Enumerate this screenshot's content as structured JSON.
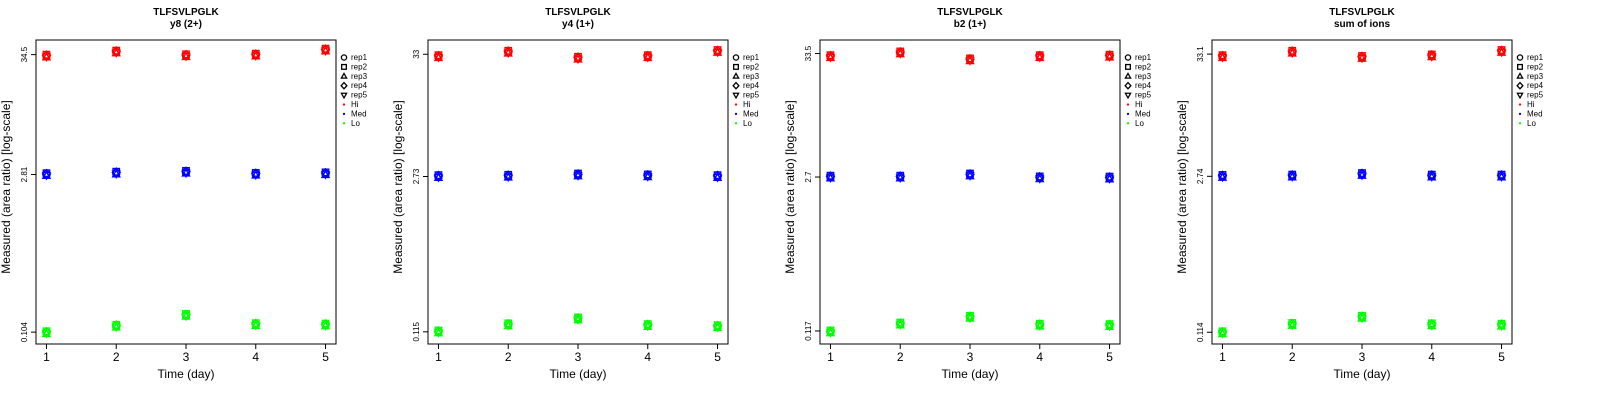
{
  "chart_data": [
    {
      "type": "scatter",
      "title": "TLFSVLPGLK",
      "subtitle": "y8 (2+)",
      "xlabel": "Time (day)",
      "ylabel": "Measured (area ratio) [log-scale]",
      "log_y": true,
      "yticks": [
        "0.104",
        "2.81",
        "34.5"
      ],
      "ylim": [
        0.1,
        38
      ],
      "x": [
        1,
        2,
        3,
        4,
        5
      ],
      "series": [
        {
          "name": "Hi",
          "color": "#ff0000",
          "values": [
            33.5,
            36.5,
            33.8,
            34.2,
            38.0
          ]
        },
        {
          "name": "Med",
          "color": "#0000ff",
          "values": [
            2.81,
            2.9,
            2.95,
            2.83,
            2.86
          ]
        },
        {
          "name": "Lo",
          "color": "#00ff00",
          "values": [
            0.103,
            0.118,
            0.148,
            0.122,
            0.121
          ]
        }
      ]
    },
    {
      "type": "scatter",
      "title": "TLFSVLPGLK",
      "subtitle": "y4 (1+)",
      "xlabel": "Time (day)",
      "ylabel": "Measured (area ratio) [log-scale]",
      "log_y": true,
      "yticks": [
        "0.115",
        "2.73",
        "33"
      ],
      "ylim": [
        0.11,
        36
      ],
      "x": [
        1,
        2,
        3,
        4,
        5
      ],
      "series": [
        {
          "name": "Hi",
          "color": "#ff0000",
          "values": [
            31.5,
            34.5,
            30.5,
            31.5,
            35.0
          ]
        },
        {
          "name": "Med",
          "color": "#0000ff",
          "values": [
            2.73,
            2.75,
            2.82,
            2.77,
            2.73
          ]
        },
        {
          "name": "Lo",
          "color": "#00ff00",
          "values": [
            0.115,
            0.133,
            0.15,
            0.131,
            0.128
          ]
        }
      ]
    },
    {
      "type": "scatter",
      "title": "TLFSVLPGLK",
      "subtitle": "b2 (1+)",
      "xlabel": "Time (day)",
      "ylabel": "Measured (area ratio) [log-scale]",
      "log_y": true,
      "yticks": [
        "0.117",
        "2.7",
        "33.5"
      ],
      "ylim": [
        0.11,
        36
      ],
      "x": [
        1,
        2,
        3,
        4,
        5
      ],
      "series": [
        {
          "name": "Hi",
          "color": "#ff0000",
          "values": [
            31.5,
            34.0,
            29.5,
            31.5,
            31.8
          ]
        },
        {
          "name": "Med",
          "color": "#0000ff",
          "values": [
            2.7,
            2.7,
            2.82,
            2.66,
            2.65
          ]
        },
        {
          "name": "Lo",
          "color": "#00ff00",
          "values": [
            0.115,
            0.135,
            0.155,
            0.132,
            0.131
          ]
        }
      ]
    },
    {
      "type": "scatter",
      "title": "TLFSVLPGLK",
      "subtitle": "sum of ions",
      "xlabel": "Time (day)",
      "ylabel": "Measured (area ratio) [log-scale]",
      "log_y": true,
      "yticks": [
        "0.114",
        "2.74",
        "33.1"
      ],
      "ylim": [
        0.11,
        36
      ],
      "x": [
        1,
        2,
        3,
        4,
        5
      ],
      "series": [
        {
          "name": "Hi",
          "color": "#ff0000",
          "values": [
            31.5,
            34.5,
            31.0,
            32.0,
            35.0
          ]
        },
        {
          "name": "Med",
          "color": "#0000ff",
          "values": [
            2.74,
            2.76,
            2.85,
            2.76,
            2.76
          ]
        },
        {
          "name": "Lo",
          "color": "#00ff00",
          "values": [
            0.113,
            0.134,
            0.155,
            0.133,
            0.132
          ]
        }
      ]
    }
  ],
  "legend": {
    "placement": "right",
    "entries": [
      {
        "label": "rep1",
        "symbol": "circle",
        "color": "#000000"
      },
      {
        "label": "rep2",
        "symbol": "square",
        "color": "#000000"
      },
      {
        "label": "rep3",
        "symbol": "triangle-up",
        "color": "#000000"
      },
      {
        "label": "rep4",
        "symbol": "diamond",
        "color": "#000000"
      },
      {
        "label": "rep5",
        "symbol": "triangle-down",
        "color": "#000000"
      },
      {
        "label": "Hi",
        "symbol": "dot",
        "color": "#ff0000"
      },
      {
        "label": "Med",
        "symbol": "dot",
        "color": "#0000ff"
      },
      {
        "label": "Lo",
        "symbol": "dot",
        "color": "#00ff00"
      }
    ]
  }
}
